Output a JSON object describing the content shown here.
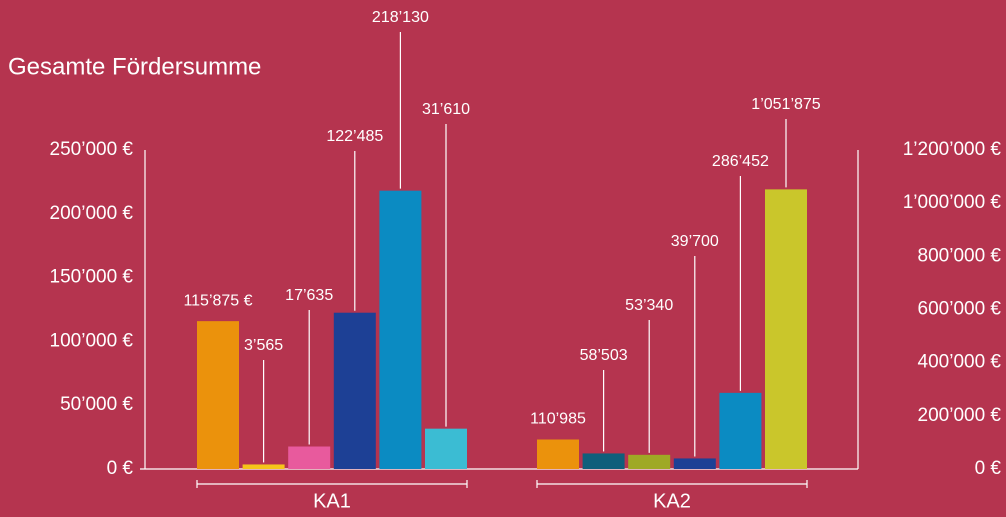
{
  "chart_data": {
    "type": "bar",
    "title": "Gesamte Fördersumme",
    "ylim": [
      0,
      250000
    ],
    "yticks": [
      {
        "value": 0,
        "label": "0 €"
      },
      {
        "value": 50000,
        "label": "50’000 €"
      },
      {
        "value": 100000,
        "label": "100’000 €"
      },
      {
        "value": 150000,
        "label": "150’000 €"
      },
      {
        "value": 200000,
        "label": "200’000 €"
      },
      {
        "value": 250000,
        "label": "250’000 €"
      }
    ],
    "y2lim": [
      0,
      1200000
    ],
    "y2ticks": [
      {
        "value": 0,
        "label": "0 €"
      },
      {
        "value": 200000,
        "label": "200’000 €"
      },
      {
        "value": 400000,
        "label": "400’000 €"
      },
      {
        "value": 600000,
        "label": "600’000 €"
      },
      {
        "value": 800000,
        "label": "800’000 €"
      },
      {
        "value": 1000000,
        "label": "1’000’000 €"
      },
      {
        "value": 1200000,
        "label": "1’200’000 €"
      }
    ],
    "groups": [
      {
        "name": "KA1",
        "axis": "y",
        "colors": [
          "#eb920c",
          "#f6c51a",
          "#e85a9d",
          "#1d4095",
          "#0b8bc2",
          "#3bbcd3"
        ],
        "values": [
          115875,
          3565,
          17635,
          122485,
          218130,
          31610
        ],
        "value_labels": [
          "115’875 €",
          "3’565",
          "17’635",
          "122’485",
          "218’130",
          "31’610"
        ]
      },
      {
        "name": "KA2",
        "axis": "y2",
        "colors": [
          "#eb920c",
          "#0f5f7b",
          "#9fa925",
          "#1d4095",
          "#0b8bc2",
          "#cac62b"
        ],
        "values": [
          110985,
          58503,
          53340,
          39700,
          286452,
          1051875
        ],
        "value_labels": [
          "110’985",
          "58’503",
          "53’340",
          "39’700",
          "286’452",
          "1’051’875"
        ]
      }
    ]
  }
}
